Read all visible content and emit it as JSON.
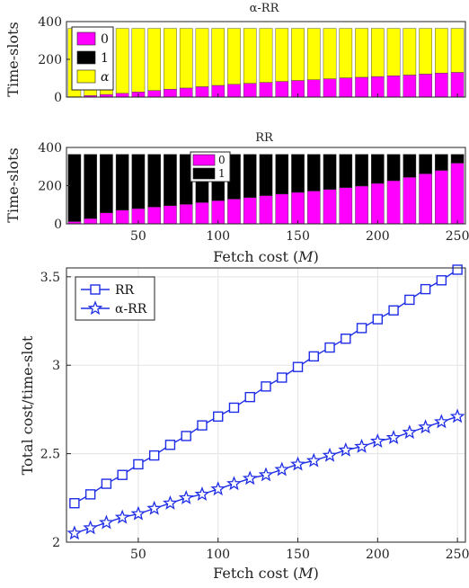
{
  "chart_data": [
    {
      "type": "bar",
      "stacked": true,
      "title": "α-RR",
      "xlabel": "",
      "ylabel": "Time-slots",
      "xlim": [
        5,
        255
      ],
      "ylim": [
        0,
        400
      ],
      "yticks": [
        "0",
        "200",
        "400"
      ],
      "xticks": [],
      "legend_position": "top-left",
      "categories": [
        10,
        20,
        30,
        40,
        50,
        60,
        70,
        80,
        90,
        100,
        110,
        120,
        130,
        140,
        150,
        160,
        170,
        180,
        190,
        200,
        210,
        220,
        230,
        240,
        250
      ],
      "series": [
        {
          "name": "0",
          "color": "#ff00ff",
          "values": [
            2,
            8,
            14,
            20,
            27,
            35,
            42,
            48,
            55,
            62,
            68,
            73,
            78,
            83,
            88,
            92,
            97,
            102,
            105,
            109,
            113,
            117,
            122,
            127,
            131
          ]
        },
        {
          "name": "1",
          "color": "#000000",
          "values": [
            0,
            0,
            0,
            0,
            0,
            0,
            0,
            0,
            0,
            0,
            0,
            0,
            0,
            0,
            0,
            0,
            0,
            0,
            0,
            0,
            0,
            0,
            0,
            0,
            0
          ]
        },
        {
          "name": "α",
          "color": "#ffff00",
          "values": [
            362,
            356,
            350,
            344,
            337,
            329,
            322,
            316,
            309,
            302,
            296,
            291,
            286,
            281,
            276,
            272,
            267,
            262,
            259,
            255,
            251,
            247,
            242,
            237,
            233
          ]
        }
      ]
    },
    {
      "type": "bar",
      "stacked": true,
      "title": "RR",
      "xlabel": "Fetch cost (M)",
      "ylabel": "Time-slots",
      "xlim": [
        5,
        255
      ],
      "ylim": [
        0,
        400
      ],
      "yticks": [
        "0",
        "200",
        "400"
      ],
      "xticks": [
        "50",
        "100",
        "150",
        "200",
        "250"
      ],
      "legend_position": "top-center",
      "categories": [
        10,
        20,
        30,
        40,
        50,
        60,
        70,
        80,
        90,
        100,
        110,
        120,
        130,
        140,
        150,
        160,
        170,
        180,
        190,
        200,
        210,
        220,
        230,
        240,
        250
      ],
      "series": [
        {
          "name": "0",
          "color": "#ff00ff",
          "values": [
            12,
            28,
            58,
            72,
            80,
            88,
            95,
            102,
            112,
            122,
            130,
            138,
            148,
            156,
            165,
            172,
            180,
            190,
            198,
            212,
            226,
            244,
            262,
            280,
            318
          ]
        },
        {
          "name": "1",
          "color": "#000000",
          "values": [
            352,
            336,
            306,
            292,
            284,
            276,
            269,
            262,
            252,
            242,
            234,
            226,
            216,
            208,
            199,
            192,
            184,
            174,
            166,
            152,
            138,
            120,
            102,
            84,
            46
          ]
        }
      ]
    },
    {
      "type": "line",
      "title": "",
      "xlabel": "Fetch cost (M)",
      "ylabel": "Total cost/time-slot",
      "xlim": [
        5,
        255
      ],
      "ylim": [
        2,
        3.55
      ],
      "xticks": [
        "50",
        "100",
        "150",
        "200",
        "250"
      ],
      "yticks": [
        "2",
        "2.5",
        "3",
        "3.5"
      ],
      "grid": true,
      "legend_position": "top-left",
      "x": [
        10,
        20,
        30,
        40,
        50,
        60,
        70,
        80,
        90,
        100,
        110,
        120,
        130,
        140,
        150,
        160,
        170,
        180,
        190,
        200,
        210,
        220,
        230,
        240,
        250
      ],
      "series": [
        {
          "name": "RR",
          "marker": "square",
          "color": "#1f2ee6",
          "values": [
            2.22,
            2.27,
            2.33,
            2.38,
            2.44,
            2.49,
            2.55,
            2.6,
            2.66,
            2.71,
            2.76,
            2.82,
            2.88,
            2.93,
            2.99,
            3.05,
            3.1,
            3.15,
            3.21,
            3.26,
            3.31,
            3.37,
            3.43,
            3.48,
            3.54
          ]
        },
        {
          "name": "α-RR",
          "marker": "star",
          "color": "#1f2ee6",
          "values": [
            2.05,
            2.08,
            2.11,
            2.14,
            2.16,
            2.19,
            2.22,
            2.25,
            2.27,
            2.3,
            2.33,
            2.36,
            2.38,
            2.41,
            2.44,
            2.46,
            2.49,
            2.52,
            2.54,
            2.57,
            2.59,
            2.62,
            2.65,
            2.68,
            2.71
          ]
        }
      ]
    }
  ]
}
